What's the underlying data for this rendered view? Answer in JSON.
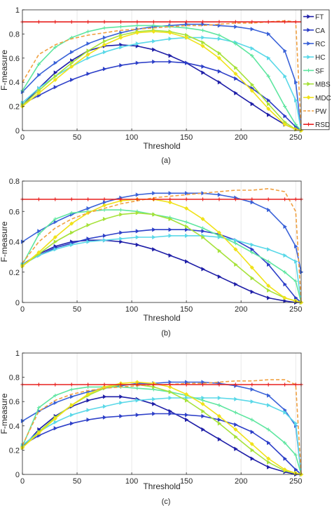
{
  "chart_data": [
    {
      "type": "line",
      "caption": "(a)",
      "xlabel": "Threshold",
      "ylabel": "F-measure",
      "xlim": [
        0,
        255
      ],
      "ylim": [
        0,
        1
      ],
      "xticks": [
        "0",
        "50",
        "100",
        "150",
        "200",
        "250"
      ],
      "yticks": [
        "0",
        "0.2",
        "0.4",
        "0.6",
        "0.8",
        "1"
      ],
      "grid": "vertical",
      "legend": "right-inside",
      "x": [
        0,
        15,
        30,
        45,
        60,
        75,
        90,
        105,
        120,
        135,
        150,
        165,
        180,
        195,
        210,
        225,
        240,
        250,
        255
      ],
      "series": [
        {
          "name": "FT",
          "color": "#1f1fa8",
          "marker": "triangle-right",
          "style": "solid",
          "values": [
            0.21,
            0.35,
            0.48,
            0.58,
            0.66,
            0.7,
            0.71,
            0.7,
            0.67,
            0.62,
            0.56,
            0.48,
            0.4,
            0.31,
            0.22,
            0.13,
            0.05,
            0.01,
            0.0
          ]
        },
        {
          "name": "CA",
          "color": "#2d3fc8",
          "marker": "triangle-right",
          "style": "solid",
          "values": [
            0.22,
            0.29,
            0.36,
            0.42,
            0.47,
            0.51,
            0.54,
            0.56,
            0.57,
            0.57,
            0.56,
            0.53,
            0.49,
            0.43,
            0.35,
            0.25,
            0.12,
            0.03,
            0.0
          ]
        },
        {
          "name": "RC",
          "color": "#3a62d8",
          "marker": "triangle-right",
          "style": "solid",
          "values": [
            0.32,
            0.46,
            0.56,
            0.65,
            0.72,
            0.77,
            0.81,
            0.84,
            0.86,
            0.87,
            0.88,
            0.88,
            0.87,
            0.86,
            0.84,
            0.8,
            0.66,
            0.4,
            0.0
          ]
        },
        {
          "name": "HC",
          "color": "#5ad8e8",
          "marker": "triangle-right",
          "style": "solid",
          "values": [
            0.23,
            0.35,
            0.45,
            0.53,
            0.6,
            0.65,
            0.69,
            0.72,
            0.74,
            0.76,
            0.77,
            0.77,
            0.76,
            0.73,
            0.68,
            0.6,
            0.45,
            0.25,
            0.0
          ]
        },
        {
          "name": "SF",
          "color": "#5ee6a0",
          "marker": "plus",
          "style": "solid",
          "values": [
            0.33,
            0.55,
            0.69,
            0.77,
            0.82,
            0.85,
            0.86,
            0.87,
            0.87,
            0.86,
            0.85,
            0.83,
            0.79,
            0.72,
            0.62,
            0.45,
            0.2,
            0.05,
            0.0
          ]
        },
        {
          "name": "MBS",
          "color": "#a6e23a",
          "marker": "triangle-right",
          "style": "solid",
          "values": [
            0.21,
            0.33,
            0.45,
            0.56,
            0.66,
            0.74,
            0.79,
            0.82,
            0.83,
            0.82,
            0.79,
            0.73,
            0.64,
            0.52,
            0.38,
            0.22,
            0.07,
            0.01,
            0.0
          ]
        },
        {
          "name": "MDC",
          "color": "#f0e21a",
          "marker": "diamond",
          "style": "solid",
          "values": [
            0.2,
            0.31,
            0.42,
            0.53,
            0.63,
            0.71,
            0.77,
            0.81,
            0.82,
            0.81,
            0.77,
            0.7,
            0.6,
            0.47,
            0.33,
            0.18,
            0.05,
            0.01,
            0.0
          ]
        },
        {
          "name": "PW",
          "color": "#f0a040",
          "marker": "none",
          "style": "dashed",
          "values": [
            0.4,
            0.63,
            0.71,
            0.76,
            0.79,
            0.81,
            0.83,
            0.84,
            0.85,
            0.86,
            0.87,
            0.87,
            0.88,
            0.89,
            0.89,
            0.9,
            0.91,
            0.9,
            0.0
          ]
        },
        {
          "name": "RSD",
          "color": "#e8201e",
          "marker": "plus",
          "style": "solid",
          "values": [
            0.9,
            0.9,
            0.9,
            0.9,
            0.9,
            0.9,
            0.9,
            0.9,
            0.9,
            0.9,
            0.9,
            0.9,
            0.9,
            0.9,
            0.9,
            0.9,
            0.9,
            0.9,
            0.9
          ]
        }
      ]
    },
    {
      "type": "line",
      "caption": "(b)",
      "xlabel": "Threshold",
      "ylabel": "F-measure",
      "xlim": [
        0,
        255
      ],
      "ylim": [
        0,
        0.8
      ],
      "xticks": [
        "0",
        "50",
        "100",
        "150",
        "200",
        "250"
      ],
      "yticks": [
        "0",
        "0.2",
        "0.4",
        "0.6",
        "0.8"
      ],
      "grid": "vertical",
      "x": [
        0,
        15,
        30,
        45,
        60,
        75,
        90,
        105,
        120,
        135,
        150,
        165,
        180,
        195,
        210,
        225,
        240,
        250,
        255
      ],
      "series": [
        {
          "name": "FT",
          "color": "#1f1fa8",
          "marker": "triangle-right",
          "style": "solid",
          "values": [
            0.25,
            0.32,
            0.37,
            0.4,
            0.41,
            0.41,
            0.4,
            0.38,
            0.35,
            0.31,
            0.27,
            0.22,
            0.17,
            0.12,
            0.07,
            0.03,
            0.01,
            0.0,
            0.0
          ]
        },
        {
          "name": "CA",
          "color": "#2d3fc8",
          "marker": "triangle-right",
          "style": "solid",
          "values": [
            0.25,
            0.31,
            0.36,
            0.39,
            0.42,
            0.44,
            0.46,
            0.47,
            0.48,
            0.48,
            0.48,
            0.47,
            0.45,
            0.41,
            0.35,
            0.25,
            0.12,
            0.03,
            0.0
          ]
        },
        {
          "name": "RC",
          "color": "#3a62d8",
          "marker": "triangle-right",
          "style": "solid",
          "values": [
            0.4,
            0.47,
            0.53,
            0.58,
            0.62,
            0.66,
            0.69,
            0.71,
            0.72,
            0.72,
            0.72,
            0.72,
            0.71,
            0.69,
            0.66,
            0.61,
            0.5,
            0.37,
            0.2
          ]
        },
        {
          "name": "HC",
          "color": "#5ad8e8",
          "marker": "triangle-right",
          "style": "solid",
          "values": [
            0.25,
            0.31,
            0.35,
            0.38,
            0.4,
            0.41,
            0.42,
            0.43,
            0.43,
            0.44,
            0.44,
            0.44,
            0.43,
            0.41,
            0.38,
            0.35,
            0.31,
            0.27,
            0.0
          ]
        },
        {
          "name": "SF",
          "color": "#5ee6a0",
          "marker": "plus",
          "style": "solid",
          "values": [
            0.25,
            0.45,
            0.55,
            0.59,
            0.6,
            0.61,
            0.61,
            0.6,
            0.58,
            0.56,
            0.53,
            0.49,
            0.44,
            0.39,
            0.33,
            0.27,
            0.2,
            0.14,
            0.0
          ]
        },
        {
          "name": "MBS",
          "color": "#a6e23a",
          "marker": "triangle-right",
          "style": "solid",
          "values": [
            0.24,
            0.32,
            0.4,
            0.46,
            0.51,
            0.55,
            0.58,
            0.59,
            0.58,
            0.55,
            0.5,
            0.43,
            0.34,
            0.25,
            0.16,
            0.08,
            0.03,
            0.01,
            0.0
          ]
        },
        {
          "name": "MDC",
          "color": "#f0e21a",
          "marker": "diamond",
          "style": "solid",
          "values": [
            0.24,
            0.33,
            0.43,
            0.52,
            0.59,
            0.64,
            0.67,
            0.68,
            0.68,
            0.66,
            0.62,
            0.55,
            0.46,
            0.35,
            0.23,
            0.11,
            0.03,
            0.01,
            0.0
          ]
        },
        {
          "name": "PW",
          "color": "#f0a040",
          "marker": "none",
          "style": "dashed",
          "values": [
            0.26,
            0.4,
            0.49,
            0.55,
            0.59,
            0.62,
            0.65,
            0.67,
            0.69,
            0.7,
            0.71,
            0.72,
            0.73,
            0.74,
            0.74,
            0.75,
            0.73,
            0.6,
            0.0
          ]
        },
        {
          "name": "RSD",
          "color": "#e8201e",
          "marker": "plus",
          "style": "solid",
          "values": [
            0.68,
            0.68,
            0.68,
            0.68,
            0.68,
            0.68,
            0.68,
            0.68,
            0.68,
            0.68,
            0.68,
            0.68,
            0.68,
            0.68,
            0.68,
            0.68,
            0.68,
            0.68,
            0.68
          ]
        }
      ]
    },
    {
      "type": "line",
      "caption": "(c)",
      "xlabel": "Threshold",
      "ylabel": "F-measure",
      "xlim": [
        0,
        255
      ],
      "ylim": [
        0,
        1
      ],
      "xticks": [
        "0",
        "50",
        "100",
        "150",
        "200",
        "250"
      ],
      "yticks": [
        "0",
        "0.2",
        "0.4",
        "0.6",
        "0.8",
        "1"
      ],
      "grid": "vertical",
      "x": [
        0,
        15,
        30,
        45,
        60,
        75,
        90,
        105,
        120,
        135,
        150,
        165,
        180,
        195,
        210,
        225,
        240,
        250,
        255
      ],
      "series": [
        {
          "name": "FT",
          "color": "#1f1fa8",
          "marker": "triangle-right",
          "style": "solid",
          "values": [
            0.22,
            0.37,
            0.48,
            0.56,
            0.61,
            0.64,
            0.64,
            0.62,
            0.58,
            0.52,
            0.45,
            0.37,
            0.29,
            0.21,
            0.13,
            0.06,
            0.02,
            0.0,
            0.0
          ]
        },
        {
          "name": "CA",
          "color": "#2d3fc8",
          "marker": "triangle-right",
          "style": "solid",
          "values": [
            0.24,
            0.32,
            0.38,
            0.42,
            0.45,
            0.47,
            0.48,
            0.49,
            0.5,
            0.5,
            0.49,
            0.48,
            0.45,
            0.41,
            0.35,
            0.26,
            0.13,
            0.04,
            0.0
          ]
        },
        {
          "name": "RC",
          "color": "#3a62d8",
          "marker": "triangle-right",
          "style": "solid",
          "values": [
            0.44,
            0.52,
            0.59,
            0.64,
            0.68,
            0.71,
            0.73,
            0.75,
            0.75,
            0.76,
            0.76,
            0.76,
            0.75,
            0.73,
            0.7,
            0.65,
            0.53,
            0.4,
            0.0
          ]
        },
        {
          "name": "HC",
          "color": "#5ad8e8",
          "marker": "triangle-right",
          "style": "solid",
          "values": [
            0.24,
            0.35,
            0.43,
            0.49,
            0.53,
            0.56,
            0.59,
            0.61,
            0.62,
            0.63,
            0.63,
            0.63,
            0.63,
            0.62,
            0.6,
            0.57,
            0.51,
            0.42,
            0.0
          ]
        },
        {
          "name": "SF",
          "color": "#5ee6a0",
          "marker": "plus",
          "style": "solid",
          "values": [
            0.23,
            0.55,
            0.65,
            0.7,
            0.72,
            0.72,
            0.72,
            0.71,
            0.7,
            0.68,
            0.65,
            0.61,
            0.57,
            0.51,
            0.45,
            0.37,
            0.26,
            0.16,
            0.0
          ]
        },
        {
          "name": "MBS",
          "color": "#a6e23a",
          "marker": "triangle-right",
          "style": "solid",
          "values": [
            0.22,
            0.35,
            0.47,
            0.57,
            0.65,
            0.71,
            0.74,
            0.74,
            0.72,
            0.68,
            0.61,
            0.52,
            0.42,
            0.31,
            0.2,
            0.1,
            0.03,
            0.01,
            0.0
          ]
        },
        {
          "name": "MDC",
          "color": "#f0e21a",
          "marker": "diamond",
          "style": "solid",
          "values": [
            0.22,
            0.34,
            0.46,
            0.57,
            0.66,
            0.72,
            0.75,
            0.76,
            0.75,
            0.72,
            0.66,
            0.58,
            0.48,
            0.37,
            0.25,
            0.13,
            0.04,
            0.01,
            0.0
          ]
        },
        {
          "name": "PW",
          "color": "#f0a040",
          "marker": "none",
          "style": "dashed",
          "values": [
            0.24,
            0.52,
            0.61,
            0.66,
            0.69,
            0.71,
            0.72,
            0.73,
            0.74,
            0.74,
            0.75,
            0.75,
            0.76,
            0.77,
            0.77,
            0.78,
            0.78,
            0.74,
            0.0
          ]
        },
        {
          "name": "RSD",
          "color": "#e8201e",
          "marker": "plus",
          "style": "solid",
          "values": [
            0.74,
            0.74,
            0.74,
            0.74,
            0.74,
            0.74,
            0.74,
            0.74,
            0.74,
            0.74,
            0.74,
            0.74,
            0.74,
            0.74,
            0.74,
            0.74,
            0.74,
            0.74,
            0.74
          ]
        }
      ]
    }
  ]
}
